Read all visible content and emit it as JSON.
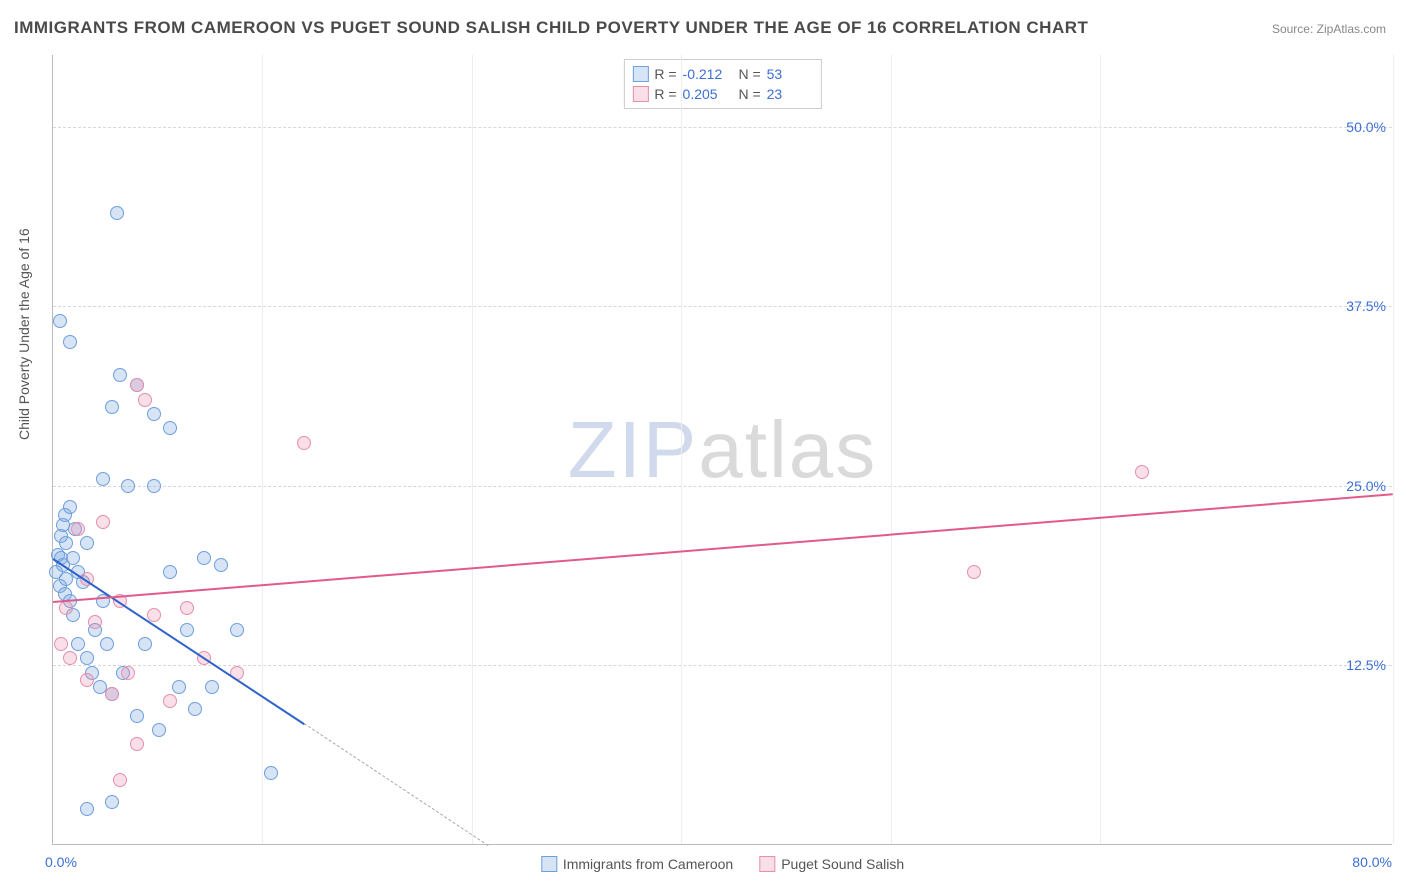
{
  "title": "IMMIGRANTS FROM CAMEROON VS PUGET SOUND SALISH CHILD POVERTY UNDER THE AGE OF 16 CORRELATION CHART",
  "source": "Source: ZipAtlas.com",
  "ylabel": "Child Poverty Under the Age of 16",
  "watermark": {
    "zip": "ZIP",
    "atlas": "atlas"
  },
  "chart": {
    "type": "scatter",
    "xlim": [
      0,
      80
    ],
    "ylim": [
      0,
      55
    ],
    "xtick_left": "0.0%",
    "xtick_right": "80.0%",
    "yticks": [
      {
        "v": 12.5,
        "label": "12.5%"
      },
      {
        "v": 25.0,
        "label": "25.0%"
      },
      {
        "v": 37.5,
        "label": "37.5%"
      },
      {
        "v": 50.0,
        "label": "50.0%"
      }
    ],
    "vgrid": [
      12.5,
      25.0,
      37.5,
      50.0,
      62.5,
      80.0
    ],
    "background_color": "#ffffff",
    "grid_color": "#d8d8d8",
    "point_radius": 7,
    "point_stroke_width": 1.4,
    "series": [
      {
        "name": "Immigrants from Cameroon",
        "fill": "rgba(120,165,225,0.30)",
        "stroke": "#6f9fde",
        "line_color": "#2e63c9",
        "R": "-0.212",
        "N": "53",
        "trend": {
          "x1": 0,
          "y1": 20.0,
          "x2": 15,
          "y2": 8.5,
          "solid": true
        },
        "trend_ext": {
          "x1": 15,
          "y1": 8.5,
          "x2": 26,
          "y2": 0
        },
        "points": [
          [
            0.2,
            19.0
          ],
          [
            0.3,
            20.2
          ],
          [
            0.4,
            18.0
          ],
          [
            0.5,
            21.5
          ],
          [
            0.5,
            20.0
          ],
          [
            0.6,
            19.5
          ],
          [
            0.6,
            22.3
          ],
          [
            0.7,
            17.5
          ],
          [
            0.7,
            23.0
          ],
          [
            0.8,
            21.0
          ],
          [
            0.8,
            18.5
          ],
          [
            1.0,
            17.0
          ],
          [
            1.0,
            23.5
          ],
          [
            1.2,
            16.0
          ],
          [
            1.2,
            20.0
          ],
          [
            1.3,
            22.0
          ],
          [
            1.5,
            19.0
          ],
          [
            1.5,
            14.0
          ],
          [
            1.8,
            18.3
          ],
          [
            2.0,
            13.0
          ],
          [
            2.0,
            21.0
          ],
          [
            2.3,
            12.0
          ],
          [
            2.5,
            15.0
          ],
          [
            2.8,
            11.0
          ],
          [
            3.0,
            25.5
          ],
          [
            3.0,
            17.0
          ],
          [
            3.2,
            14.0
          ],
          [
            3.5,
            30.5
          ],
          [
            3.5,
            10.5
          ],
          [
            4.0,
            32.7
          ],
          [
            4.2,
            12.0
          ],
          [
            4.5,
            25.0
          ],
          [
            5.0,
            32.0
          ],
          [
            5.0,
            9.0
          ],
          [
            5.5,
            14.0
          ],
          [
            6.0,
            30.0
          ],
          [
            6.0,
            25.0
          ],
          [
            6.3,
            8.0
          ],
          [
            7.0,
            29.0
          ],
          [
            7.0,
            19.0
          ],
          [
            7.5,
            11.0
          ],
          [
            8.0,
            15.0
          ],
          [
            8.5,
            9.5
          ],
          [
            9.0,
            20.0
          ],
          [
            9.5,
            11.0
          ],
          [
            10.0,
            19.5
          ],
          [
            11.0,
            15.0
          ],
          [
            13.0,
            5.0
          ],
          [
            1.0,
            35.0
          ],
          [
            0.4,
            36.5
          ],
          [
            3.8,
            44.0
          ],
          [
            2.0,
            2.5
          ],
          [
            3.5,
            3.0
          ]
        ]
      },
      {
        "name": "Puget Sound Salish",
        "fill": "rgba(235,140,170,0.28)",
        "stroke": "#e58fae",
        "line_color": "#e15a8c",
        "R": "0.205",
        "N": "23",
        "trend": {
          "x1": 0,
          "y1": 17.0,
          "x2": 80,
          "y2": 24.5,
          "solid": true
        },
        "points": [
          [
            0.5,
            14.0
          ],
          [
            0.8,
            16.5
          ],
          [
            1.0,
            13.0
          ],
          [
            1.5,
            22.0
          ],
          [
            2.0,
            11.5
          ],
          [
            2.0,
            18.5
          ],
          [
            2.5,
            15.5
          ],
          [
            3.0,
            22.5
          ],
          [
            3.5,
            10.5
          ],
          [
            4.0,
            17.0
          ],
          [
            4.5,
            12.0
          ],
          [
            5.0,
            32.0
          ],
          [
            5.5,
            31.0
          ],
          [
            6.0,
            16.0
          ],
          [
            7.0,
            10.0
          ],
          [
            8.0,
            16.5
          ],
          [
            9.0,
            13.0
          ],
          [
            11.0,
            12.0
          ],
          [
            15.0,
            28.0
          ],
          [
            4.0,
            4.5
          ],
          [
            5.0,
            7.0
          ],
          [
            55.0,
            19.0
          ],
          [
            65.0,
            26.0
          ]
        ]
      }
    ]
  }
}
